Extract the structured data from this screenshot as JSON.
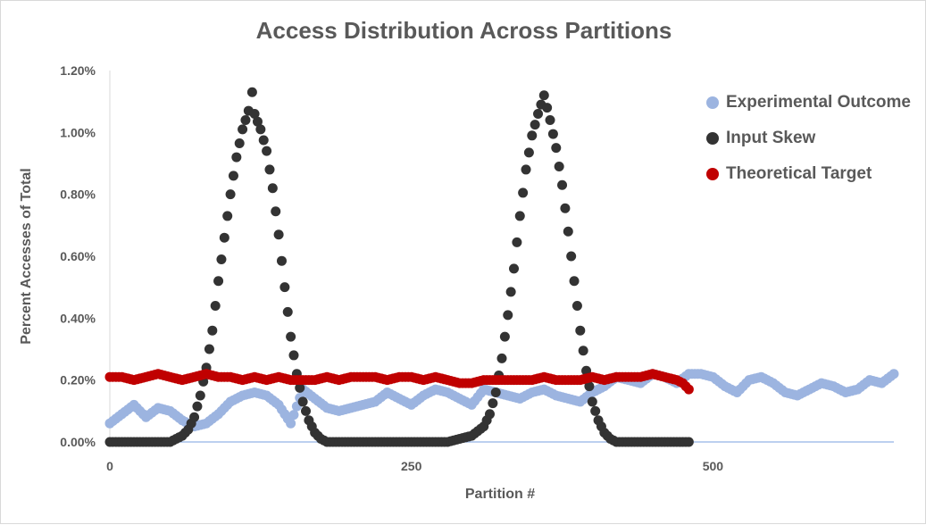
{
  "chart_data": {
    "type": "scatter",
    "title": "Access Distribution Across Partitions",
    "xlabel": "Partition #",
    "ylabel": "Percent Accesses of Total",
    "xlim": [
      0,
      650
    ],
    "ylim": [
      0,
      0.012
    ],
    "x_ticks": [
      0,
      250,
      500
    ],
    "y_ticks": [
      0,
      0.002,
      0.004,
      0.006,
      0.008,
      0.01,
      0.012
    ],
    "y_tick_labels": [
      "0.00%",
      "0.20%",
      "0.40%",
      "0.60%",
      "0.80%",
      "1.00%",
      "1.20%"
    ],
    "grid": false,
    "legend_position": "right",
    "series": [
      {
        "name": "Experimental Outcome",
        "color": "#9cb4e0",
        "x": [
          0,
          10,
          20,
          30,
          40,
          50,
          60,
          70,
          80,
          90,
          100,
          110,
          120,
          130,
          140,
          150,
          160,
          170,
          180,
          190,
          200,
          210,
          220,
          230,
          240,
          250,
          260,
          270,
          280,
          290,
          300,
          310,
          320,
          330,
          340,
          350,
          360,
          370,
          380,
          390,
          400,
          410,
          420,
          430,
          440,
          450,
          460,
          470,
          480,
          490,
          500,
          510,
          520,
          530,
          540,
          550,
          560,
          570,
          580,
          590,
          600,
          610,
          620,
          630,
          640,
          650
        ],
        "y": [
          0.0006,
          0.0009,
          0.0012,
          0.0008,
          0.0011,
          0.001,
          0.0007,
          0.0005,
          0.0006,
          0.0009,
          0.0013,
          0.0015,
          0.0016,
          0.0015,
          0.0012,
          0.0006,
          0.0017,
          0.0014,
          0.0011,
          0.001,
          0.0011,
          0.0012,
          0.0013,
          0.0016,
          0.0014,
          0.0012,
          0.0015,
          0.0017,
          0.0016,
          0.0014,
          0.0012,
          0.0017,
          0.0016,
          0.0015,
          0.0014,
          0.0016,
          0.0017,
          0.0015,
          0.0014,
          0.0013,
          0.0016,
          0.0018,
          0.0021,
          0.002,
          0.0019,
          0.0022,
          0.0021,
          0.0019,
          0.0022,
          0.0022,
          0.0021,
          0.0018,
          0.0016,
          0.002,
          0.0021,
          0.0019,
          0.0016,
          0.0015,
          0.0017,
          0.0019,
          0.0018,
          0.0016,
          0.0017,
          0.002,
          0.0019,
          0.0022
        ]
      },
      {
        "name": "Input Skew",
        "color": "#333333",
        "x": [
          0,
          10,
          20,
          30,
          40,
          50,
          60,
          65,
          70,
          75,
          80,
          85,
          90,
          95,
          100,
          105,
          110,
          115,
          118,
          120,
          125,
          130,
          135,
          140,
          145,
          150,
          155,
          160,
          165,
          170,
          175,
          180,
          190,
          200,
          220,
          240,
          260,
          280,
          290,
          300,
          310,
          315,
          320,
          325,
          330,
          335,
          340,
          345,
          350,
          355,
          360,
          365,
          370,
          375,
          380,
          385,
          390,
          395,
          400,
          405,
          410,
          415,
          420,
          430,
          440,
          460,
          480
        ],
        "y": [
          0,
          0,
          0,
          0,
          0,
          0,
          0.0002,
          0.0004,
          0.0008,
          0.0015,
          0.0024,
          0.0036,
          0.0052,
          0.0066,
          0.008,
          0.0092,
          0.0101,
          0.0107,
          0.0113,
          0.0106,
          0.0101,
          0.0094,
          0.0082,
          0.0067,
          0.005,
          0.0034,
          0.0022,
          0.0013,
          0.0007,
          0.0003,
          0.0001,
          0,
          0,
          0,
          0,
          0,
          0,
          0,
          0.0001,
          0.0002,
          0.0005,
          0.0009,
          0.0016,
          0.0027,
          0.0041,
          0.0056,
          0.0073,
          0.0088,
          0.0099,
          0.0106,
          0.0112,
          0.0104,
          0.0095,
          0.0083,
          0.0068,
          0.0052,
          0.0036,
          0.0023,
          0.0013,
          0.0007,
          0.0003,
          0.0001,
          0,
          0,
          0,
          0,
          0
        ]
      },
      {
        "name": "Theoretical Target",
        "color": "#c00000",
        "x": [
          0,
          10,
          20,
          30,
          40,
          50,
          60,
          70,
          80,
          90,
          100,
          110,
          120,
          130,
          140,
          150,
          160,
          170,
          180,
          190,
          200,
          210,
          220,
          230,
          240,
          250,
          260,
          270,
          280,
          290,
          300,
          310,
          320,
          330,
          340,
          350,
          360,
          370,
          380,
          390,
          400,
          410,
          420,
          430,
          440,
          450,
          460,
          470,
          475,
          480
        ],
        "y": [
          0.0021,
          0.0021,
          0.002,
          0.0021,
          0.0022,
          0.0021,
          0.002,
          0.0021,
          0.0022,
          0.0021,
          0.0021,
          0.002,
          0.0021,
          0.002,
          0.0021,
          0.002,
          0.002,
          0.002,
          0.0021,
          0.002,
          0.0021,
          0.0021,
          0.0021,
          0.002,
          0.0021,
          0.0021,
          0.002,
          0.0021,
          0.002,
          0.0019,
          0.0019,
          0.002,
          0.002,
          0.002,
          0.002,
          0.002,
          0.0021,
          0.002,
          0.002,
          0.002,
          0.0021,
          0.002,
          0.0021,
          0.0021,
          0.0021,
          0.0022,
          0.0021,
          0.002,
          0.0019,
          0.0017
        ]
      }
    ]
  }
}
